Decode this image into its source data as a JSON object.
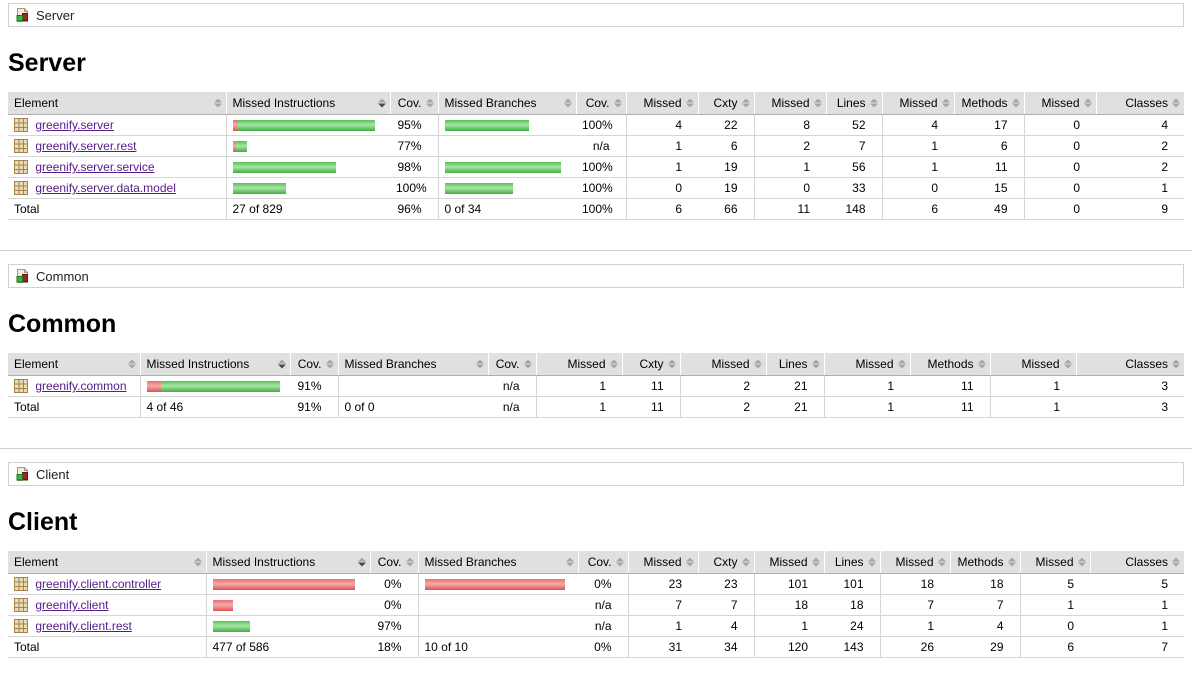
{
  "colors": {
    "coverage_green": "#3fae3f",
    "coverage_red": "#dd5252",
    "link_purple": "#551a8b",
    "header_bg": "#e0e0e0"
  },
  "icons": {
    "breadcrumb": "group-icon",
    "element": "package-icon",
    "header_unsorted": "sort-both-icon",
    "header_sorted": "sort-desc-icon"
  },
  "table": {
    "sort_column_key": "missed_instructions",
    "sort_direction": "desc",
    "columns": [
      {
        "key": "element",
        "label": "Element",
        "align": "left"
      },
      {
        "key": "missed_instructions",
        "label": "Missed Instructions",
        "align": "left"
      },
      {
        "key": "cov1",
        "label": "Cov.",
        "align": "right"
      },
      {
        "key": "missed_branches",
        "label": "Missed Branches",
        "align": "left"
      },
      {
        "key": "cov2",
        "label": "Cov.",
        "align": "right"
      },
      {
        "key": "missed1",
        "label": "Missed",
        "align": "right"
      },
      {
        "key": "cxty",
        "label": "Cxty",
        "align": "right"
      },
      {
        "key": "missed2",
        "label": "Missed",
        "align": "right"
      },
      {
        "key": "lines",
        "label": "Lines",
        "align": "right"
      },
      {
        "key": "missed3",
        "label": "Missed",
        "align": "right"
      },
      {
        "key": "methods",
        "label": "Methods",
        "align": "right"
      },
      {
        "key": "missed4",
        "label": "Missed",
        "align": "right"
      },
      {
        "key": "classes",
        "label": "Classes",
        "align": "right"
      }
    ]
  },
  "sections": [
    {
      "id": "server",
      "breadcrumb": "Server",
      "title": "Server",
      "rows": [
        {
          "name": "greenify.server",
          "instr_bar": {
            "red": 5,
            "green": 137
          },
          "instr_cov": "95%",
          "branch_bar": {
            "red": 0,
            "green": 84
          },
          "branch_cov": "100%",
          "nums": [
            "4",
            "22",
            "8",
            "52",
            "4",
            "17",
            "0",
            "4"
          ]
        },
        {
          "name": "greenify.server.rest",
          "instr_bar": {
            "red": 3,
            "green": 11
          },
          "instr_cov": "77%",
          "branch_bar": null,
          "branch_cov": "n/a",
          "nums": [
            "1",
            "6",
            "2",
            "7",
            "1",
            "6",
            "0",
            "2"
          ]
        },
        {
          "name": "greenify.server.service",
          "instr_bar": {
            "red": 0,
            "green": 103
          },
          "instr_cov": "98%",
          "branch_bar": {
            "red": 0,
            "green": 116
          },
          "branch_cov": "100%",
          "nums": [
            "1",
            "19",
            "1",
            "56",
            "1",
            "11",
            "0",
            "2"
          ]
        },
        {
          "name": "greenify.server.data.model",
          "instr_bar": {
            "red": 0,
            "green": 53
          },
          "instr_cov": "100%",
          "branch_bar": {
            "red": 0,
            "green": 68
          },
          "branch_cov": "100%",
          "nums": [
            "0",
            "19",
            "0",
            "33",
            "0",
            "15",
            "0",
            "1"
          ]
        }
      ],
      "total": {
        "label": "Total",
        "instr": "27 of 829",
        "instr_cov": "96%",
        "branch": "0 of 34",
        "branch_cov": "100%",
        "nums": [
          "6",
          "66",
          "11",
          "148",
          "6",
          "49",
          "0",
          "9"
        ]
      }
    },
    {
      "id": "common",
      "breadcrumb": "Common",
      "title": "Common",
      "rows": [
        {
          "name": "greenify.common",
          "instr_bar": {
            "red": 14,
            "green": 119
          },
          "instr_cov": "91%",
          "branch_bar": null,
          "branch_cov": "n/a",
          "nums": [
            "1",
            "11",
            "2",
            "21",
            "1",
            "11",
            "1",
            "3"
          ]
        }
      ],
      "total": {
        "label": "Total",
        "instr": "4 of 46",
        "instr_cov": "91%",
        "branch": "0 of 0",
        "branch_cov": "n/a",
        "nums": [
          "1",
          "11",
          "2",
          "21",
          "1",
          "11",
          "1",
          "3"
        ]
      }
    },
    {
      "id": "client",
      "breadcrumb": "Client",
      "title": "Client",
      "rows": [
        {
          "name": "greenify.client.controller",
          "instr_bar": {
            "red": 142,
            "green": 0
          },
          "instr_cov": "0%",
          "branch_bar": {
            "red": 140,
            "green": 0
          },
          "branch_cov": "0%",
          "nums": [
            "23",
            "23",
            "101",
            "101",
            "18",
            "18",
            "5",
            "5"
          ]
        },
        {
          "name": "greenify.client",
          "instr_bar": {
            "red": 20,
            "green": 0
          },
          "instr_cov": "0%",
          "branch_bar": null,
          "branch_cov": "n/a",
          "nums": [
            "7",
            "7",
            "18",
            "18",
            "7",
            "7",
            "1",
            "1"
          ]
        },
        {
          "name": "greenify.client.rest",
          "instr_bar": {
            "red": 0,
            "green": 37
          },
          "instr_cov": "97%",
          "branch_bar": null,
          "branch_cov": "n/a",
          "nums": [
            "1",
            "4",
            "1",
            "24",
            "1",
            "4",
            "0",
            "1"
          ]
        }
      ],
      "total": {
        "label": "Total",
        "instr": "477 of 586",
        "instr_cov": "18%",
        "branch": "10 of 10",
        "branch_cov": "0%",
        "nums": [
          "31",
          "34",
          "120",
          "143",
          "26",
          "29",
          "6",
          "7"
        ]
      }
    }
  ]
}
